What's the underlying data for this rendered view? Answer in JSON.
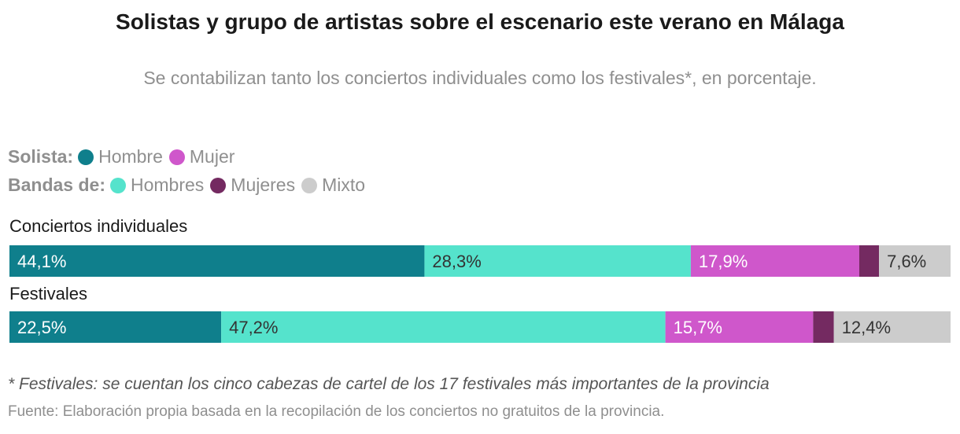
{
  "title": "Solistas y grupo de artistas sobre el escenario este verano en Málaga",
  "subtitle": "Se contabilizan tanto los conciertos individuales como los festivales*, en porcentaje.",
  "legend": {
    "row1_label": "Solista:",
    "row2_label": "Bandas de:",
    "items": {
      "hombre": "Hombre",
      "mujer": "Mujer",
      "hombres": "Hombres",
      "mujeres": "Mujeres",
      "mixto": "Mixto"
    }
  },
  "colors": {
    "solista_hombre": "#0f7f8c",
    "solista_mujer": "#cf57cb",
    "bandas_hombres": "#55e3cc",
    "bandas_mujeres": "#742a61",
    "bandas_mixto": "#cccccc"
  },
  "chart_data": {
    "type": "bar",
    "orientation": "horizontal",
    "stacked": true,
    "categories": [
      "Conciertos individuales",
      "Festivales"
    ],
    "series": [
      {
        "name": "Hombre",
        "group": "Solista",
        "color": "#0f7f8c",
        "values": [
          44.1,
          22.5
        ],
        "labels": [
          "44,1%",
          "22,5%"
        ]
      },
      {
        "name": "Hombres",
        "group": "Bandas de",
        "color": "#55e3cc",
        "values": [
          28.3,
          47.2
        ],
        "labels": [
          "28,3%",
          "47,2%"
        ]
      },
      {
        "name": "Mujer",
        "group": "Solista",
        "color": "#cf57cb",
        "values": [
          17.9,
          15.7
        ],
        "labels": [
          "17,9%",
          "15,7%"
        ]
      },
      {
        "name": "Mujeres",
        "group": "Bandas de",
        "color": "#742a61",
        "values": [
          2.1,
          2.2
        ],
        "labels": [
          "",
          ""
        ]
      },
      {
        "name": "Mixto",
        "group": "Bandas de",
        "color": "#cccccc",
        "values": [
          7.6,
          12.4
        ],
        "labels": [
          "7,6%",
          "12,4%"
        ]
      }
    ],
    "xlim": [
      0,
      100
    ],
    "grid": false,
    "legend_position": "top-left"
  },
  "note": "* Festivales: se cuentan los cinco cabezas de cartel de los 17 festivales más importantes de la provincia",
  "source": "Fuente: Elaboración propia basada en la recopilación de los conciertos no gratuitos de la provincia."
}
